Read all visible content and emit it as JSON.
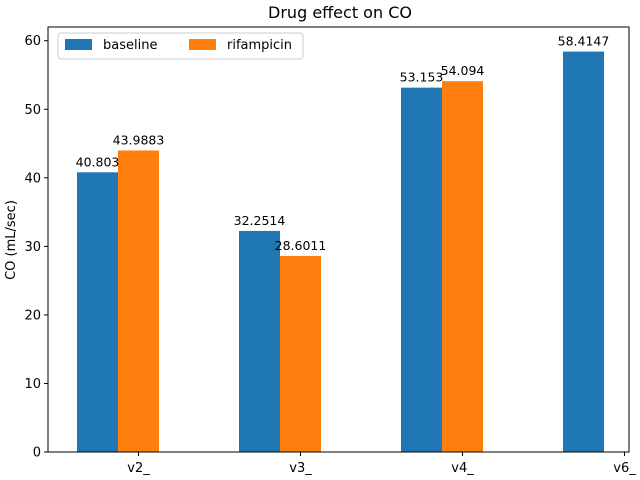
{
  "chart_data": {
    "type": "bar",
    "title": "Drug effect on CO",
    "xlabel": "",
    "ylabel": "CO (mL/sec)",
    "categories": [
      "v2_",
      "v3_",
      "v4_",
      "v6_"
    ],
    "series": [
      {
        "name": "baseline",
        "color": "#1f77b4",
        "values": [
          40.803,
          32.2514,
          53.153,
          58.4147
        ],
        "labels": [
          "40.803",
          "32.2514",
          "53.153",
          "58.4147"
        ]
      },
      {
        "name": "rifampicin",
        "color": "#ff7f0e",
        "values": [
          43.9883,
          28.6011,
          54.094,
          null
        ],
        "labels": [
          "43.9883",
          "28.6011",
          "54.094",
          null
        ]
      }
    ],
    "ylim": [
      0,
      62
    ],
    "yticks": [
      0,
      10,
      20,
      30,
      40,
      50,
      60
    ],
    "grid": false,
    "legend_position": "top-left"
  }
}
